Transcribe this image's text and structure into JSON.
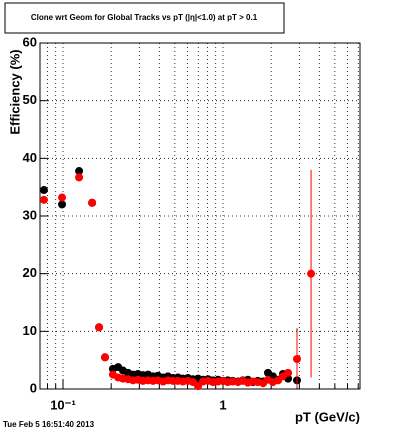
{
  "chart_data": {
    "type": "scatter",
    "title": "Clone wrt Geom for Global Tracks vs pT (|η|<1.0) at pT > 0.1",
    "x_label": "pT (GeV/c)",
    "y_label": "Efficiency (%)",
    "footer": "Tue Feb  5 16:51:40 2013",
    "log_x": true,
    "grid": true,
    "xlim": [
      0.0718,
      7.18
    ],
    "xticks": [
      {
        "value": 0.1,
        "label": "10⁻¹"
      },
      1
    ],
    "xminor": [
      0.08,
      0.09,
      0.2,
      0.3,
      0.4,
      0.5,
      0.6,
      0.7,
      0.8,
      0.9,
      2,
      3,
      4,
      5,
      6,
      7
    ],
    "ylim": [
      0,
      60
    ],
    "yticks": [
      0,
      10,
      20,
      30,
      40,
      50,
      60
    ],
    "x": [
      0.076,
      0.0986,
      0.126,
      0.152,
      0.168,
      0.183,
      0.205,
      0.221,
      0.237,
      0.255,
      0.274,
      0.294,
      0.316,
      0.34,
      0.365,
      0.392,
      0.422,
      0.453,
      0.487,
      0.523,
      0.562,
      0.604,
      0.649,
      0.698,
      0.75,
      0.806,
      0.866,
      0.931,
      1.0,
      1.07,
      1.15,
      1.24,
      1.33,
      1.43,
      1.54,
      1.65,
      1.78,
      1.91,
      2.05,
      2.21,
      2.37,
      2.55,
      2.9,
      3.55
    ],
    "series": [
      {
        "color": "#000000",
        "values": [
          34.5,
          32,
          37.8,
          32.3,
          10.7,
          5.5,
          3.5,
          3.8,
          3.2,
          2.8,
          2.5,
          2.6,
          2.4,
          2.5,
          2.2,
          2.3,
          2.0,
          2.2,
          1.9,
          2.0,
          1.8,
          1.9,
          1.7,
          1.8,
          1.6,
          1.7,
          1.5,
          1.6,
          1.4,
          1.5,
          1.4,
          1.3,
          1.5,
          1.6,
          1.2,
          1.4,
          1.3,
          2.8,
          2.2,
          1.6,
          2.6,
          1.8,
          1.5,
          null
        ],
        "errors": [
          null,
          null,
          null,
          null,
          null,
          null,
          null,
          null,
          null,
          null,
          null,
          null,
          null,
          null,
          null,
          null,
          null,
          null,
          null,
          null,
          null,
          null,
          null,
          null,
          null,
          null,
          null,
          null,
          null,
          null,
          null,
          null,
          null,
          null,
          null,
          null,
          null,
          null,
          null,
          null,
          null,
          null,
          9,
          null
        ]
      },
      {
        "color": "#ff0000",
        "values": [
          32.8,
          33.2,
          36.7,
          32.3,
          10.7,
          5.5,
          2.5,
          2.0,
          1.8,
          1.7,
          1.5,
          1.6,
          1.4,
          1.5,
          1.4,
          1.5,
          1.3,
          1.5,
          1.4,
          1.4,
          1.3,
          1.4,
          1.2,
          0.5,
          1.3,
          1.4,
          1.2,
          1.3,
          1.4,
          1.2,
          1.3,
          1.2,
          1.4,
          1.1,
          1.3,
          1.2,
          1.0,
          1.6,
          1.2,
          1.5,
          2.2,
          2.8,
          5.2,
          20
        ],
        "errors": [
          null,
          null,
          null,
          null,
          null,
          null,
          null,
          null,
          null,
          null,
          null,
          null,
          null,
          null,
          null,
          null,
          null,
          null,
          null,
          null,
          null,
          null,
          null,
          null,
          null,
          null,
          null,
          null,
          null,
          null,
          null,
          null,
          null,
          null,
          null,
          null,
          null,
          null,
          null,
          null,
          null,
          null,
          5,
          18
        ]
      }
    ]
  }
}
